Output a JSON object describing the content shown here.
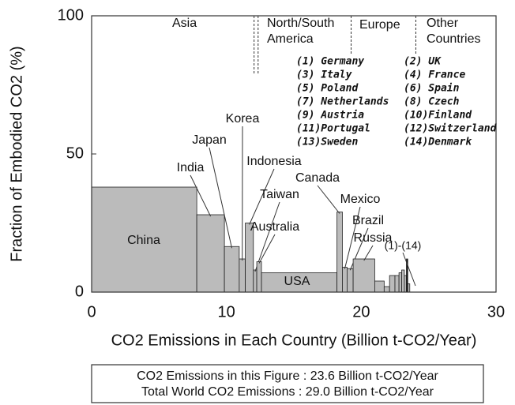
{
  "chart_data": {
    "type": "variwide",
    "x_label": "CO2 Emissions in Each Country (Billion t-CO2/Year)",
    "y_label": "Fraction of Embodied CO2 (%)",
    "xlim": [
      0,
      30
    ],
    "xticks": [
      0,
      10,
      20,
      30
    ],
    "ylim": [
      0,
      100
    ],
    "yticks": [
      0,
      50,
      100
    ],
    "color": "#bbbbbb",
    "categories": [
      "China",
      "India",
      "Japan",
      "Korea",
      "Indonesia",
      "Taiwan",
      "Australia",
      "USA",
      "Canada",
      "Mexico",
      "Brazil",
      "Russia",
      null,
      null,
      null,
      null,
      null,
      null,
      null,
      null,
      null
    ],
    "widths": [
      7.8,
      2.05,
      1.1,
      0.45,
      0.6,
      0.25,
      0.35,
      5.6,
      0.4,
      0.35,
      0.45,
      1.6,
      0.7,
      0.4,
      0.4,
      0.3,
      0.2,
      0.2,
      0.15,
      0.1,
      0.15
    ],
    "values": [
      38,
      28,
      16.5,
      12,
      25,
      8,
      11,
      7,
      29,
      9,
      8.5,
      12,
      4,
      2,
      6,
      6,
      7,
      8,
      6,
      12,
      3
    ],
    "regions": [
      "Asia",
      "North/South America",
      "Europe",
      "Other Countries"
    ],
    "region_dividers": [
      12.05,
      12.35,
      19.25,
      24.05
    ],
    "group_label": "(1)-(14)",
    "country_list": [
      "(1) Germany",
      "(2) UK",
      "(3) Italy",
      "(4) France",
      "(5) Poland",
      "(6) Spain",
      "(7) Netherlands",
      "(8) Czech",
      "(9) Austria",
      "(10)Finland",
      "(11)Portugal",
      "(12)Switzerland",
      "(13)Sweden",
      "(14)Denmark"
    ],
    "footer": [
      "CO2 Emissions in this Figure : 23.6 Billion t-CO2/Year",
      "Total World CO2 Emissions : 29.0 Billion t-CO2/Year"
    ]
  }
}
